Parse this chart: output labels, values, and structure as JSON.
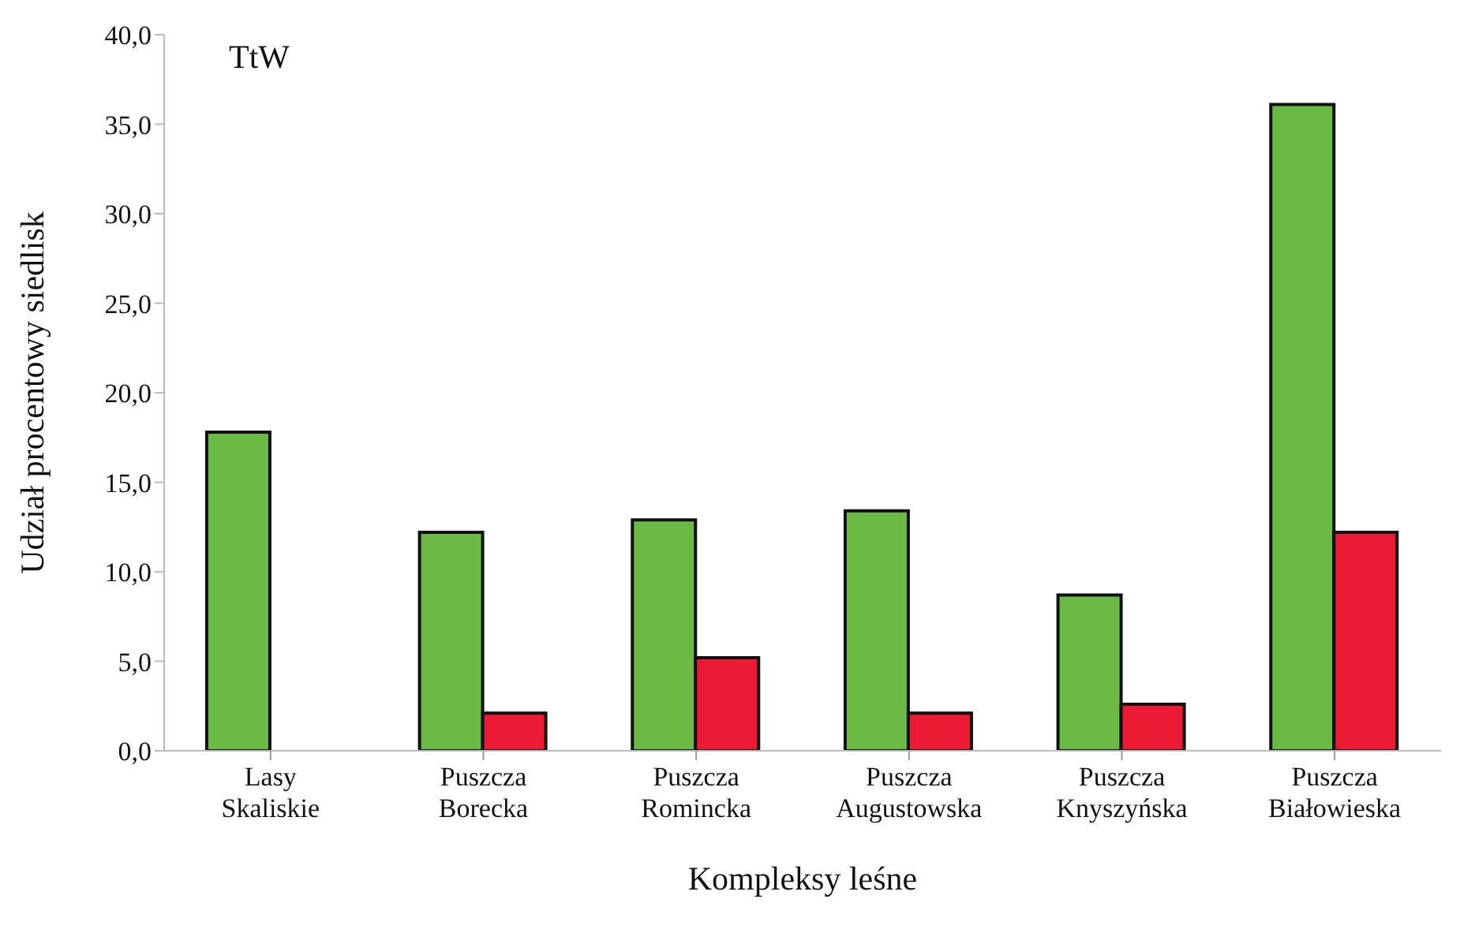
{
  "chart_data": {
    "type": "bar",
    "xlabel": "Kompleksy leśne",
    "ylabel": "Udział procentowy siedlisk",
    "annotations": [
      "TtW"
    ],
    "categories": [
      "Lasy\nSkaliskie",
      "Puszcza\nBorecka",
      "Puszcza\nRomincka",
      "Puszcza\nAugustowska",
      "Puszcza\nKnyszyńska",
      "Puszcza\nBiałowieska"
    ],
    "series": [
      {
        "color": "#6aba44",
        "values": [
          17.8,
          12.2,
          12.9,
          13.4,
          8.7,
          36.1
        ]
      },
      {
        "color": "#ec1b35",
        "values": [
          0,
          2.1,
          5.2,
          2.1,
          2.6,
          12.2
        ]
      }
    ],
    "ylim": [
      0,
      40
    ],
    "yticks": [
      {
        "value": 0,
        "label": "0,0"
      },
      {
        "value": 5,
        "label": "5,0"
      },
      {
        "value": 10,
        "label": "10,0"
      },
      {
        "value": 15,
        "label": "15,0"
      },
      {
        "value": 20,
        "label": "20,0"
      },
      {
        "value": 25,
        "label": "25,0"
      },
      {
        "value": 30,
        "label": "30,0"
      },
      {
        "value": 35,
        "label": "35,0"
      },
      {
        "value": 40,
        "label": "40,0"
      }
    ],
    "grid": false,
    "legend": false
  }
}
